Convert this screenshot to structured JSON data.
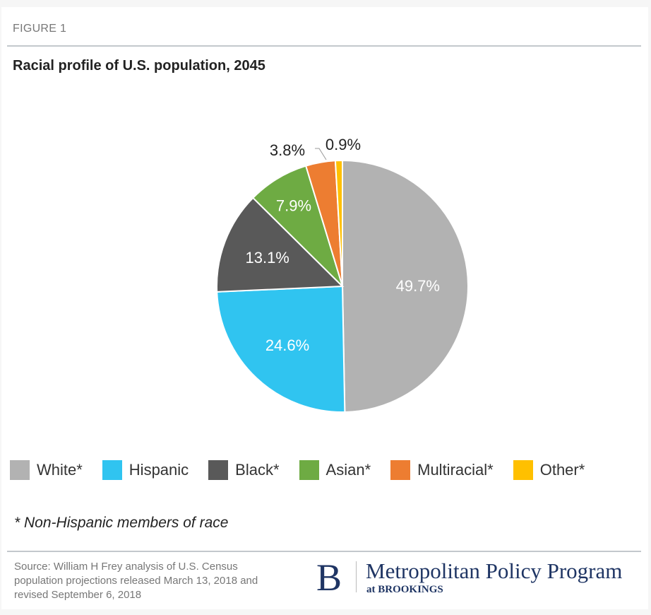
{
  "figure_label": "FIGURE 1",
  "chart_data": {
    "type": "pie",
    "title": "Racial profile of U.S. population, 2045",
    "categories": [
      "White*",
      "Hispanic",
      "Black*",
      "Asian*",
      "Multiracial*",
      "Other*"
    ],
    "values": [
      49.7,
      24.6,
      13.1,
      7.9,
      3.8,
      0.9
    ],
    "labels": [
      "49.7%",
      "24.6%",
      "13.1%",
      "7.9%",
      "3.8%",
      "0.9%"
    ],
    "colors": [
      "#b2b2b2",
      "#30c4f0",
      "#595959",
      "#6eab43",
      "#ed7d31",
      "#ffc000"
    ],
    "legend_position": "bottom",
    "start": "top, clockwise"
  },
  "note": "* Non-Hispanic members of race",
  "source": "Source: William H Frey analysis of U.S. Census population projections released March 13, 2018 and revised September 6, 2018",
  "logo": {
    "letter": "B",
    "name": "Metropolitan Policy Program",
    "sub": "at BROOKINGS"
  }
}
